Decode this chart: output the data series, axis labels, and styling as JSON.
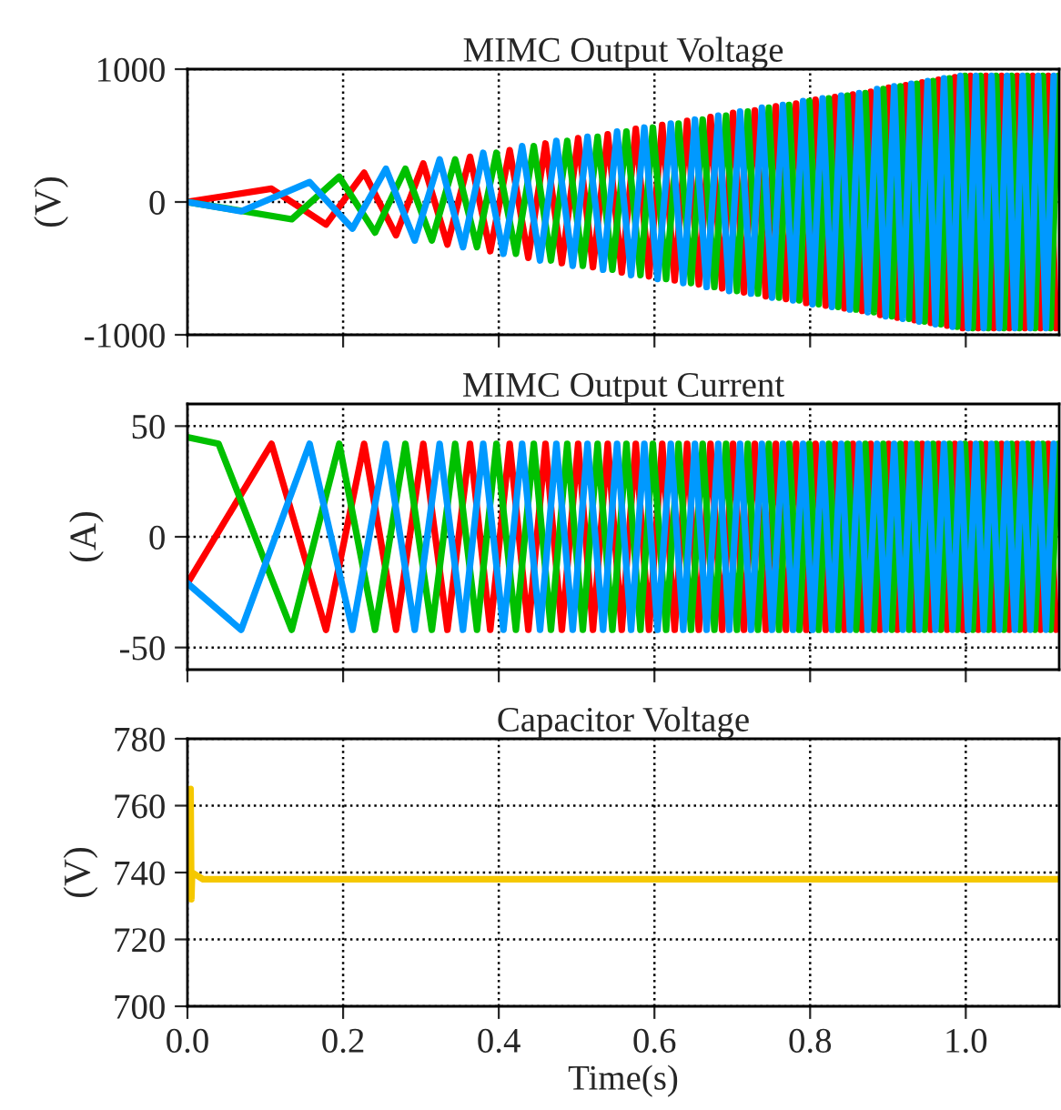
{
  "chart_data": [
    {
      "type": "line",
      "title": "MIMC Output Voltage",
      "ylabel": "(V)",
      "xlim": [
        0,
        1.12
      ],
      "xticks": [
        0,
        0.2,
        0.4,
        0.6,
        0.8,
        1.0
      ],
      "ylim": [
        -1000,
        1000
      ],
      "yticks": [
        -1000,
        0,
        1000
      ],
      "grid": true,
      "tick_labels": "y",
      "legend": false,
      "series": [
        {
          "color": "#ff0000",
          "x": [
            0.0,
            0.108,
            0.178,
            0.227,
            0.268,
            0.303,
            0.334,
            0.363,
            0.389,
            0.414,
            0.438,
            0.46,
            0.481,
            0.502,
            0.521,
            0.54,
            0.558,
            0.576,
            0.593,
            0.61,
            0.626,
            0.642,
            0.657,
            0.672,
            0.687,
            0.701,
            0.715,
            0.729,
            0.743,
            0.756,
            0.769,
            0.782,
            0.795,
            0.807,
            0.82,
            0.832,
            0.844,
            0.855,
            0.867,
            0.878,
            0.89,
            0.901,
            0.912,
            0.923,
            0.934,
            0.944,
            0.955,
            0.965,
            0.976,
            0.986,
            0.996,
            1.006,
            1.016,
            1.026,
            1.036,
            1.046,
            1.056,
            1.066,
            1.076,
            1.086,
            1.096,
            1.106,
            1.116
          ],
          "values": [
            0,
            100,
            -170,
            220,
            -250,
            290,
            -320,
            340,
            -370,
            390,
            -420,
            440,
            -460,
            480,
            -490,
            510,
            -530,
            550,
            -560,
            580,
            -590,
            610,
            -620,
            640,
            -650,
            670,
            -680,
            690,
            -710,
            720,
            -730,
            740,
            -760,
            770,
            -780,
            790,
            -800,
            810,
            -820,
            830,
            -850,
            860,
            -870,
            880,
            -890,
            900,
            -910,
            920,
            -930,
            940,
            -950,
            950,
            -950,
            950,
            -950,
            950,
            -950,
            950,
            -950,
            950,
            -950,
            950,
            -950
          ]
        },
        {
          "color": "#00c000",
          "x": [
            0.0,
            0.134,
            0.195,
            0.241,
            0.28,
            0.314,
            0.344,
            0.372,
            0.397,
            0.422,
            0.445,
            0.467,
            0.488,
            0.508,
            0.527,
            0.546,
            0.564,
            0.582,
            0.598,
            0.615,
            0.631,
            0.647,
            0.662,
            0.677,
            0.692,
            0.706,
            0.72,
            0.733,
            0.747,
            0.76,
            0.773,
            0.786,
            0.799,
            0.811,
            0.824,
            0.836,
            0.848,
            0.859,
            0.871,
            0.882,
            0.894,
            0.905,
            0.916,
            0.927,
            0.937,
            0.947,
            0.958,
            0.968,
            0.979,
            0.989,
            0.999,
            1.009,
            1.019,
            1.029,
            1.039,
            1.049,
            1.059,
            1.069,
            1.079,
            1.089,
            1.099,
            1.109,
            1.119
          ],
          "values": [
            0,
            -130,
            190,
            -230,
            250,
            -290,
            320,
            -340,
            370,
            -390,
            420,
            -440,
            460,
            -480,
            490,
            -510,
            530,
            -550,
            560,
            -580,
            590,
            -610,
            620,
            -640,
            650,
            -670,
            680,
            -690,
            710,
            -720,
            730,
            -740,
            760,
            -770,
            780,
            -790,
            800,
            -810,
            820,
            -830,
            850,
            -860,
            870,
            -880,
            890,
            -900,
            910,
            -920,
            930,
            -940,
            950,
            -950,
            950,
            -950,
            950,
            -950,
            950,
            -950,
            950,
            -950,
            950,
            -950,
            950
          ]
        },
        {
          "color": "#0099ff",
          "x": [
            0.0,
            0.069,
            0.157,
            0.212,
            0.255,
            0.292,
            0.324,
            0.354,
            0.38,
            0.406,
            0.43,
            0.453,
            0.474,
            0.495,
            0.514,
            0.534,
            0.552,
            0.57,
            0.587,
            0.604,
            0.621,
            0.637,
            0.652,
            0.667,
            0.682,
            0.696,
            0.71,
            0.724,
            0.738,
            0.751,
            0.765,
            0.778,
            0.791,
            0.803,
            0.816,
            0.828,
            0.84,
            0.851,
            0.863,
            0.874,
            0.886,
            0.897,
            0.908,
            0.919,
            0.93,
            0.94,
            0.951,
            0.961,
            0.972,
            0.983,
            0.993,
            1.003,
            1.013,
            1.023,
            1.033,
            1.043,
            1.053,
            1.063,
            1.073,
            1.083,
            1.093,
            1.103,
            1.113
          ],
          "values": [
            0,
            -70,
            150,
            -200,
            250,
            -290,
            320,
            -340,
            370,
            -390,
            420,
            -440,
            460,
            -480,
            490,
            -510,
            530,
            -550,
            560,
            -580,
            590,
            -610,
            620,
            -640,
            650,
            -670,
            680,
            -690,
            710,
            -720,
            730,
            -740,
            760,
            -770,
            780,
            -790,
            800,
            -810,
            820,
            -830,
            850,
            -860,
            870,
            -880,
            890,
            -900,
            910,
            -920,
            930,
            -940,
            950,
            -950,
            950,
            -950,
            950,
            -950,
            950,
            -950,
            950,
            -950,
            950,
            -950,
            950
          ]
        }
      ]
    },
    {
      "type": "line",
      "title": "MIMC Output Current",
      "ylabel": "(A)",
      "xlim": [
        0,
        1.12
      ],
      "xticks": [
        0,
        0.2,
        0.4,
        0.6,
        0.8,
        1.0
      ],
      "ylim": [
        -60,
        60
      ],
      "yticks": [
        -50,
        0,
        50
      ],
      "grid": true,
      "tick_labels": "y",
      "legend": false,
      "series": [
        {
          "color": "#ff0000",
          "x": [
            0.0,
            0.108,
            0.178,
            0.227,
            0.268,
            0.303,
            0.334,
            0.363,
            0.389,
            0.414,
            0.438,
            0.46,
            0.481,
            0.502,
            0.521,
            0.54,
            0.558,
            0.576,
            0.593,
            0.61,
            0.626,
            0.642,
            0.657,
            0.672,
            0.687,
            0.701,
            0.715,
            0.729,
            0.743,
            0.756,
            0.769,
            0.782,
            0.795,
            0.807,
            0.82,
            0.832,
            0.844,
            0.855,
            0.867,
            0.878,
            0.89,
            0.901,
            0.912,
            0.923,
            0.934,
            0.944,
            0.955,
            0.965,
            0.976,
            0.986,
            0.996,
            1.006,
            1.016,
            1.026,
            1.036,
            1.046,
            1.056,
            1.066,
            1.076,
            1.086,
            1.096,
            1.106,
            1.116
          ],
          "values": [
            -21,
            42,
            -42,
            42,
            -42,
            42,
            -42,
            42,
            -42,
            42,
            -42,
            42,
            -42,
            42,
            -42,
            42,
            -42,
            42,
            -42,
            42,
            -42,
            42,
            -42,
            42,
            -42,
            42,
            -42,
            42,
            -42,
            42,
            -42,
            42,
            -42,
            42,
            -42,
            42,
            -42,
            42,
            -42,
            42,
            -42,
            42,
            -42,
            42,
            -42,
            42,
            -42,
            42,
            -42,
            42,
            -42,
            42,
            -42,
            42,
            -42,
            42,
            -42,
            42,
            -42,
            42,
            -42,
            42,
            -42
          ]
        },
        {
          "color": "#00c000",
          "x": [
            0.0,
            0.04,
            0.134,
            0.195,
            0.241,
            0.28,
            0.314,
            0.344,
            0.372,
            0.397,
            0.422,
            0.445,
            0.467,
            0.488,
            0.508,
            0.527,
            0.546,
            0.564,
            0.582,
            0.598,
            0.615,
            0.631,
            0.647,
            0.662,
            0.677,
            0.692,
            0.706,
            0.72,
            0.733,
            0.747,
            0.76,
            0.773,
            0.786,
            0.799,
            0.811,
            0.824,
            0.836,
            0.848,
            0.859,
            0.871,
            0.882,
            0.894,
            0.905,
            0.916,
            0.927,
            0.937,
            0.947,
            0.958,
            0.968,
            0.979,
            0.989,
            0.999,
            1.009,
            1.019,
            1.029,
            1.039,
            1.049,
            1.059,
            1.069,
            1.079,
            1.089,
            1.099,
            1.109,
            1.119
          ],
          "values": [
            45,
            42,
            -42,
            42,
            -42,
            42,
            -42,
            42,
            -42,
            42,
            -42,
            42,
            -42,
            42,
            -42,
            42,
            -42,
            42,
            -42,
            42,
            -42,
            42,
            -42,
            42,
            -42,
            42,
            -42,
            42,
            -42,
            42,
            -42,
            42,
            -42,
            42,
            -42,
            42,
            -42,
            42,
            -42,
            42,
            -42,
            42,
            -42,
            42,
            -42,
            42,
            -42,
            42,
            -42,
            42,
            -42,
            42,
            -42,
            42,
            -42,
            42,
            -42,
            42,
            -42,
            42,
            -42,
            42,
            -42,
            42
          ]
        },
        {
          "color": "#0099ff",
          "x": [
            0.0,
            0.069,
            0.157,
            0.212,
            0.255,
            0.292,
            0.324,
            0.354,
            0.38,
            0.406,
            0.43,
            0.453,
            0.474,
            0.495,
            0.514,
            0.534,
            0.552,
            0.57,
            0.587,
            0.604,
            0.621,
            0.637,
            0.652,
            0.667,
            0.682,
            0.696,
            0.71,
            0.724,
            0.738,
            0.751,
            0.765,
            0.778,
            0.791,
            0.803,
            0.816,
            0.828,
            0.84,
            0.851,
            0.863,
            0.874,
            0.886,
            0.897,
            0.908,
            0.919,
            0.93,
            0.94,
            0.951,
            0.961,
            0.972,
            0.983,
            0.993,
            1.003,
            1.013,
            1.023,
            1.033,
            1.043,
            1.053,
            1.063,
            1.073,
            1.083,
            1.093,
            1.103,
            1.113
          ],
          "values": [
            -21,
            -42,
            42,
            -42,
            42,
            -42,
            42,
            -42,
            42,
            -42,
            42,
            -42,
            42,
            -42,
            42,
            -42,
            42,
            -42,
            42,
            -42,
            42,
            -42,
            42,
            -42,
            42,
            -42,
            42,
            -42,
            42,
            -42,
            42,
            -42,
            42,
            -42,
            42,
            -42,
            42,
            -42,
            42,
            -42,
            42,
            -42,
            42,
            -42,
            42,
            -42,
            42,
            -42,
            42,
            -42,
            42,
            -42,
            42,
            -42,
            42,
            -42,
            42,
            -42,
            42,
            -42,
            42,
            -42,
            42
          ]
        }
      ]
    },
    {
      "type": "line",
      "title": "Capacitor Voltage",
      "xlabel": "Time(s)",
      "ylabel": "(V)",
      "xlim": [
        0,
        1.12
      ],
      "xticks": [
        {
          "value": 0,
          "label": "0.0"
        },
        {
          "value": 0.2,
          "label": "0.2"
        },
        {
          "value": 0.4,
          "label": "0.4"
        },
        {
          "value": 0.6,
          "label": "0.6"
        },
        {
          "value": 0.8,
          "label": "0.8"
        },
        {
          "value": 1.0,
          "label": "1.0"
        }
      ],
      "ylim": [
        700,
        780
      ],
      "yticks": [
        700,
        720,
        740,
        760,
        780
      ],
      "grid": true,
      "legend": false,
      "series": [
        {
          "color": "#f5c800",
          "x": [
            0.0,
            0.004,
            0.005,
            0.006,
            0.02,
            1.12
          ],
          "values": [
            738,
            765,
            732,
            740,
            738,
            738
          ]
        }
      ]
    }
  ]
}
